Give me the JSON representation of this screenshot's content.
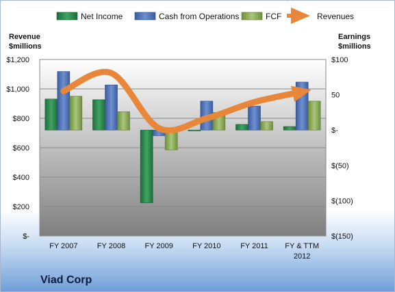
{
  "chart_data": {
    "type": "bar",
    "title": "Viad Corp",
    "categories": [
      "FY 2007",
      "FY 2008",
      "FY 2009",
      "FY 2010",
      "FY 2011",
      "FY & TTM 2012"
    ],
    "left_axis": {
      "label_line1": "Revenue",
      "label_line2": "$millions",
      "range": [
        0,
        1200
      ],
      "ticks": [
        0,
        200,
        400,
        600,
        800,
        1000,
        1200
      ],
      "tick_labels": [
        "$-",
        "$200",
        "$400",
        "$600",
        "$800",
        "$1,000",
        "$1,200"
      ]
    },
    "right_axis": {
      "label_line1": "Earnings",
      "label_line2": "$millions",
      "range": [
        -150,
        100
      ],
      "ticks": [
        -150,
        -100,
        -50,
        0,
        50,
        100
      ],
      "tick_labels": [
        "$(150)",
        "$(100)",
        "$(50)",
        "$-",
        "50",
        "$100"
      ]
    },
    "series": [
      {
        "name": "Net Income",
        "axis": "right",
        "color": "#2e8b4f",
        "values": [
          44,
          43,
          -103,
          0,
          8,
          5
        ]
      },
      {
        "name": "Cash from Operations",
        "axis": "right",
        "color": "#4a6fb3",
        "values": [
          83,
          64,
          -8,
          41,
          34,
          68
        ]
      },
      {
        "name": "FCF",
        "axis": "right",
        "color": "#8fb05c",
        "values": [
          48,
          26,
          -28,
          25,
          12,
          41
        ]
      }
    ],
    "line_series": {
      "name": "Revenues",
      "axis": "left",
      "type": "line",
      "color": "#e8873a",
      "values": [
        985,
        1108,
        733,
        800,
        910,
        980
      ]
    },
    "grid": true,
    "legend_position": "top"
  }
}
